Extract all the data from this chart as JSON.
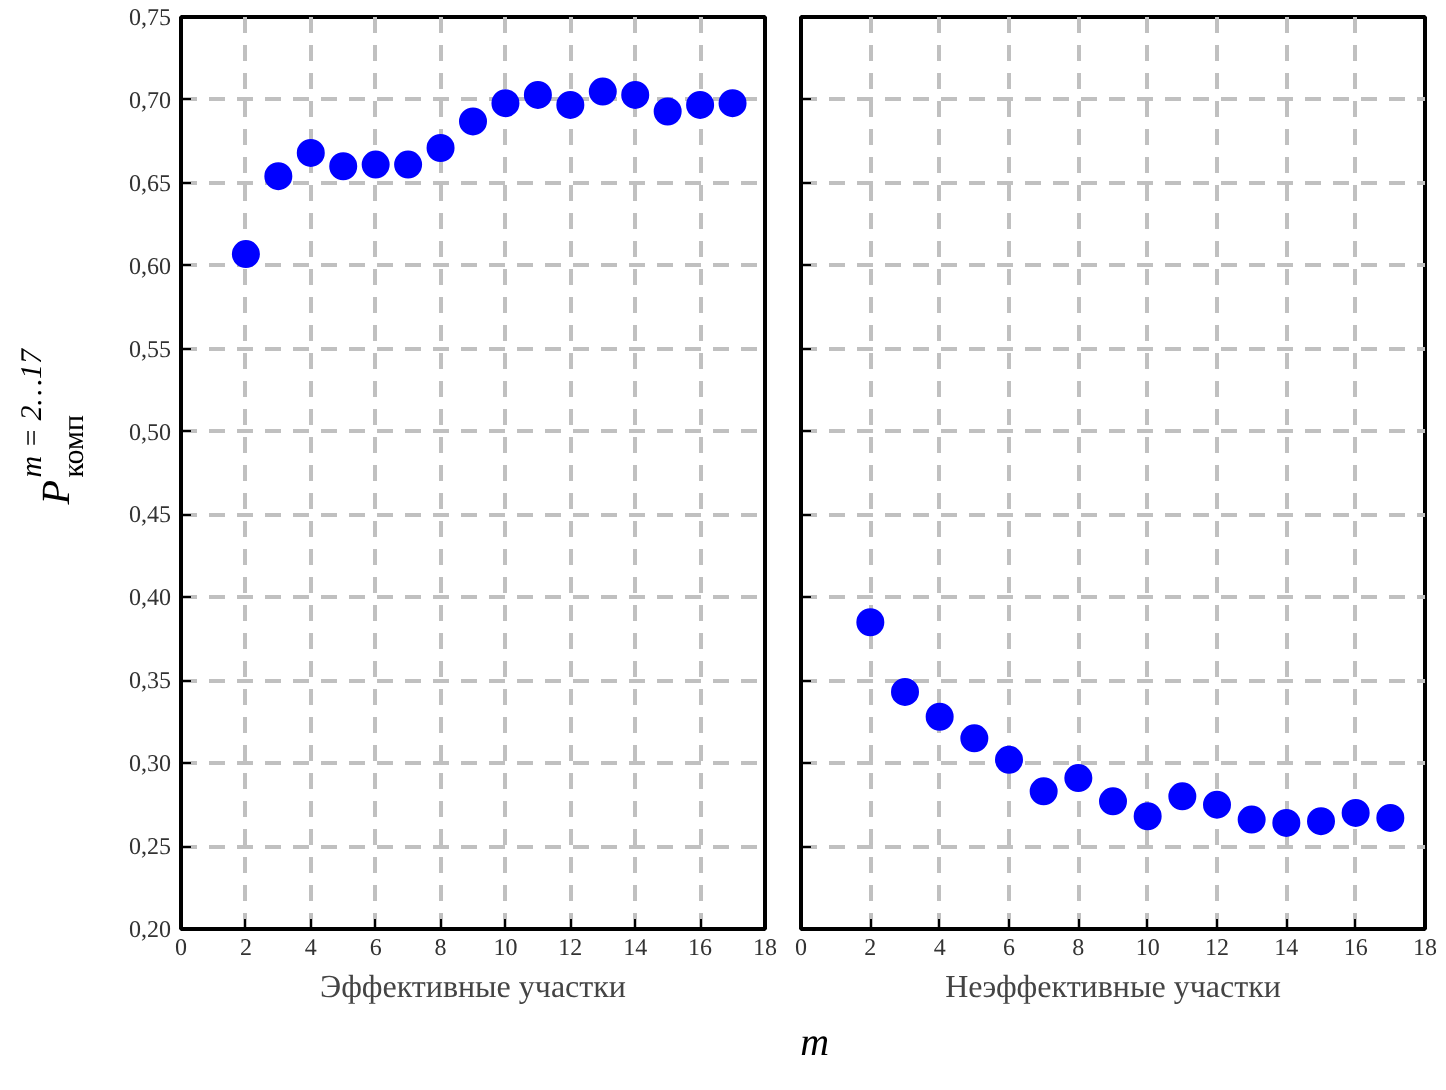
{
  "chart_data": [
    {
      "type": "scatter",
      "xlabel": "Эффективные участки",
      "ylabel": "P$^{m = 2…17}$$_{комп}$",
      "annotations": [
        "m"
      ],
      "marker": "circle",
      "grid": true,
      "x": [
        2,
        3,
        4,
        5,
        6,
        7,
        8,
        9,
        10,
        11,
        12,
        13,
        14,
        15,
        16,
        17
      ],
      "series": [
        {
          "color": "#0000ff",
          "values": [
            0.607,
            0.654,
            0.668,
            0.66,
            0.661,
            0.661,
            0.671,
            0.687,
            0.698,
            0.703,
            0.697,
            0.705,
            0.703,
            0.693,
            0.697,
            0.698
          ]
        }
      ],
      "xlim": [
        0,
        18
      ],
      "xticks": [
        0,
        2,
        4,
        6,
        8,
        10,
        12,
        14,
        16,
        18
      ],
      "ylim": [
        0.2,
        0.75
      ],
      "yticks": [
        {
          "value": 0.2,
          "label": "0,20"
        },
        {
          "value": 0.25,
          "label": "0,25"
        },
        {
          "value": 0.3,
          "label": "0,30"
        },
        {
          "value": 0.35,
          "label": "0,35"
        },
        {
          "value": 0.4,
          "label": "0,40"
        },
        {
          "value": 0.45,
          "label": "0,45"
        },
        {
          "value": 0.5,
          "label": "0,50"
        },
        {
          "value": 0.55,
          "label": "0,55"
        },
        {
          "value": 0.6,
          "label": "0,60"
        },
        {
          "value": 0.65,
          "label": "0,65"
        },
        {
          "value": 0.7,
          "label": "0,70"
        },
        {
          "value": 0.75,
          "label": "0,75"
        }
      ]
    },
    {
      "type": "scatter",
      "xlabel": "Неэффективные участки",
      "marker": "circle",
      "grid": true,
      "tick_labels": "x",
      "x": [
        2,
        3,
        4,
        5,
        6,
        7,
        8,
        9,
        10,
        11,
        12,
        13,
        14,
        15,
        16,
        17
      ],
      "series": [
        {
          "color": "#0000ff",
          "values": [
            0.385,
            0.343,
            0.328,
            0.315,
            0.302,
            0.283,
            0.291,
            0.277,
            0.268,
            0.28,
            0.275,
            0.266,
            0.264,
            0.265,
            0.27,
            0.267
          ]
        }
      ],
      "xlim": [
        0,
        18
      ],
      "xticks": [
        0,
        2,
        4,
        6,
        8,
        10,
        12,
        14,
        16,
        18
      ],
      "ylim": [
        0.2,
        0.75
      ],
      "yticks": [
        {
          "value": 0.2,
          "label": "0,20"
        },
        {
          "value": 0.25,
          "label": "0,25"
        },
        {
          "value": 0.3,
          "label": "0,30"
        },
        {
          "value": 0.35,
          "label": "0,35"
        },
        {
          "value": 0.4,
          "label": "0,40"
        },
        {
          "value": 0.45,
          "label": "0,45"
        },
        {
          "value": 0.5,
          "label": "0,50"
        },
        {
          "value": 0.55,
          "label": "0,55"
        },
        {
          "value": 0.6,
          "label": "0,60"
        },
        {
          "value": 0.65,
          "label": "0,65"
        },
        {
          "value": 0.7,
          "label": "0,70"
        },
        {
          "value": 0.75,
          "label": "0,75"
        }
      ]
    }
  ]
}
